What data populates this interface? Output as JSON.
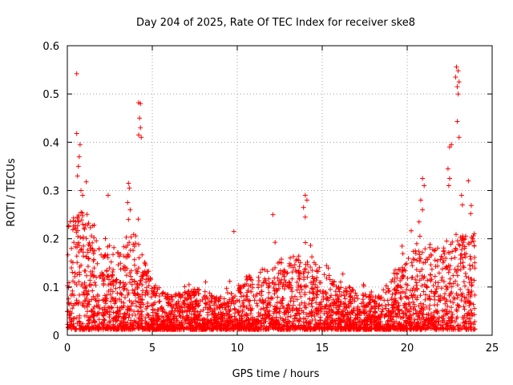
{
  "chart_data": {
    "type": "scatter",
    "title": "Day 204 of 2025, Rate Of TEC Index for receiver ske8",
    "xlabel": "GPS time / hours",
    "ylabel": "ROTI / TECUs",
    "xlim": [
      0,
      25
    ],
    "ylim": [
      0,
      0.6
    ],
    "xticks": [
      "0",
      "5",
      "10",
      "15",
      "20",
      "25"
    ],
    "yticks": [
      "0",
      "0.1",
      "0.2",
      "0.3",
      "0.4",
      "0.5",
      "0.6"
    ],
    "grid": true,
    "marker": "+",
    "color": "#ff0000",
    "series": [
      {
        "name": "ROTI",
        "envelope_hours": [
          0,
          1,
          2,
          3,
          4,
          5,
          6,
          7,
          8,
          9,
          10,
          11,
          12,
          13,
          14,
          15,
          16,
          17,
          18,
          19,
          20,
          21,
          22,
          23,
          24
        ],
        "envelope_upper_tecus": [
          0.22,
          0.25,
          0.2,
          0.17,
          0.2,
          0.1,
          0.07,
          0.08,
          0.09,
          0.06,
          0.1,
          0.12,
          0.14,
          0.15,
          0.17,
          0.12,
          0.1,
          0.08,
          0.07,
          0.1,
          0.15,
          0.18,
          0.17,
          0.2,
          0.2
        ],
        "spikes": [
          [
            0.55,
            0.542
          ],
          [
            0.55,
            0.418
          ],
          [
            0.75,
            0.395
          ],
          [
            0.7,
            0.37
          ],
          [
            0.65,
            0.35
          ],
          [
            0.6,
            0.33
          ],
          [
            0.8,
            0.3
          ],
          [
            0.9,
            0.29
          ],
          [
            2.4,
            0.29
          ],
          [
            3.6,
            0.315
          ],
          [
            3.65,
            0.305
          ],
          [
            3.55,
            0.275
          ],
          [
            3.7,
            0.26
          ],
          [
            3.6,
            0.24
          ],
          [
            4.2,
            0.482
          ],
          [
            4.3,
            0.48
          ],
          [
            4.25,
            0.45
          ],
          [
            4.3,
            0.43
          ],
          [
            4.2,
            0.415
          ],
          [
            4.35,
            0.41
          ],
          [
            9.8,
            0.215
          ],
          [
            12.1,
            0.25
          ],
          [
            14.0,
            0.29
          ],
          [
            14.1,
            0.28
          ],
          [
            13.9,
            0.265
          ],
          [
            14.0,
            0.245
          ],
          [
            20.9,
            0.325
          ],
          [
            21.0,
            0.31
          ],
          [
            20.8,
            0.28
          ],
          [
            20.9,
            0.26
          ],
          [
            20.7,
            0.235
          ],
          [
            22.5,
            0.39
          ],
          [
            22.6,
            0.395
          ],
          [
            22.4,
            0.345
          ],
          [
            22.5,
            0.325
          ],
          [
            22.45,
            0.31
          ],
          [
            22.9,
            0.556
          ],
          [
            23.0,
            0.548
          ],
          [
            22.85,
            0.535
          ],
          [
            23.05,
            0.525
          ],
          [
            22.95,
            0.515
          ],
          [
            23.0,
            0.5
          ],
          [
            22.95,
            0.443
          ],
          [
            23.05,
            0.41
          ],
          [
            23.2,
            0.29
          ],
          [
            23.25,
            0.27
          ],
          [
            23.6,
            0.32
          ]
        ]
      }
    ]
  }
}
